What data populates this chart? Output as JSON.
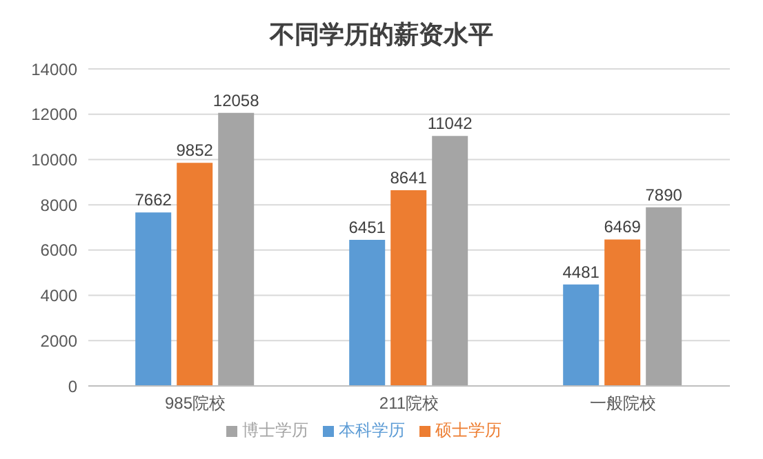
{
  "chart_data": {
    "type": "bar",
    "title": "不同学历的薪资水平",
    "categories": [
      "985院校",
      "211院校",
      "一般院校"
    ],
    "series": [
      {
        "name": "本科学历",
        "color": "#5b9bd5",
        "values": [
          7662,
          6451,
          4481
        ]
      },
      {
        "name": "硕士学历",
        "color": "#ed7d31",
        "values": [
          9852,
          8641,
          6469
        ]
      },
      {
        "name": "博士学历",
        "color": "#a5a5a5",
        "values": [
          12058,
          11042,
          7890
        ]
      }
    ],
    "ylim": [
      0,
      14000
    ],
    "yticks": [
      0,
      2000,
      4000,
      6000,
      8000,
      10000,
      12000,
      14000
    ],
    "grid": "y",
    "legend": "bottom",
    "data_labels": true
  }
}
